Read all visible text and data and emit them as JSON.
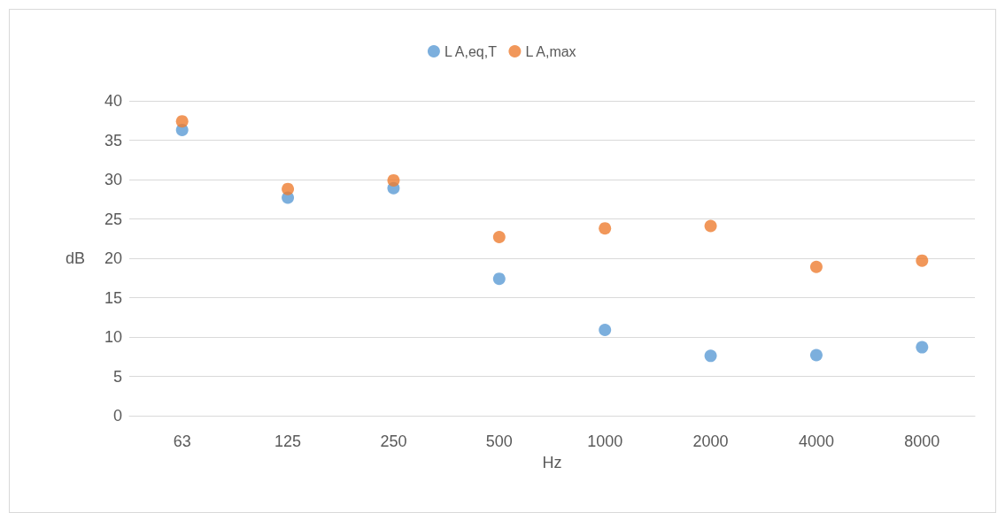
{
  "chart_data": {
    "type": "scatter",
    "xlabel": "Hz",
    "ylabel": "dB",
    "categories": [
      "63",
      "125",
      "250",
      "500",
      "1000",
      "2000",
      "4000",
      "8000"
    ],
    "series": [
      {
        "name": "L A,eq,T",
        "color": "#5b9bd5",
        "values": [
          36.3,
          27.7,
          28.9,
          17.4,
          10.9,
          7.6,
          7.7,
          8.7
        ]
      },
      {
        "name": "L A,max",
        "color": "#ed7d31",
        "values": [
          37.4,
          28.8,
          29.9,
          22.7,
          23.8,
          24.1,
          18.9,
          19.7
        ]
      }
    ],
    "ylim": [
      0,
      40
    ],
    "yticks": [
      0,
      5,
      10,
      15,
      20,
      25,
      30,
      35,
      40
    ],
    "grid": "y",
    "legend": "top",
    "marker": "circle"
  }
}
